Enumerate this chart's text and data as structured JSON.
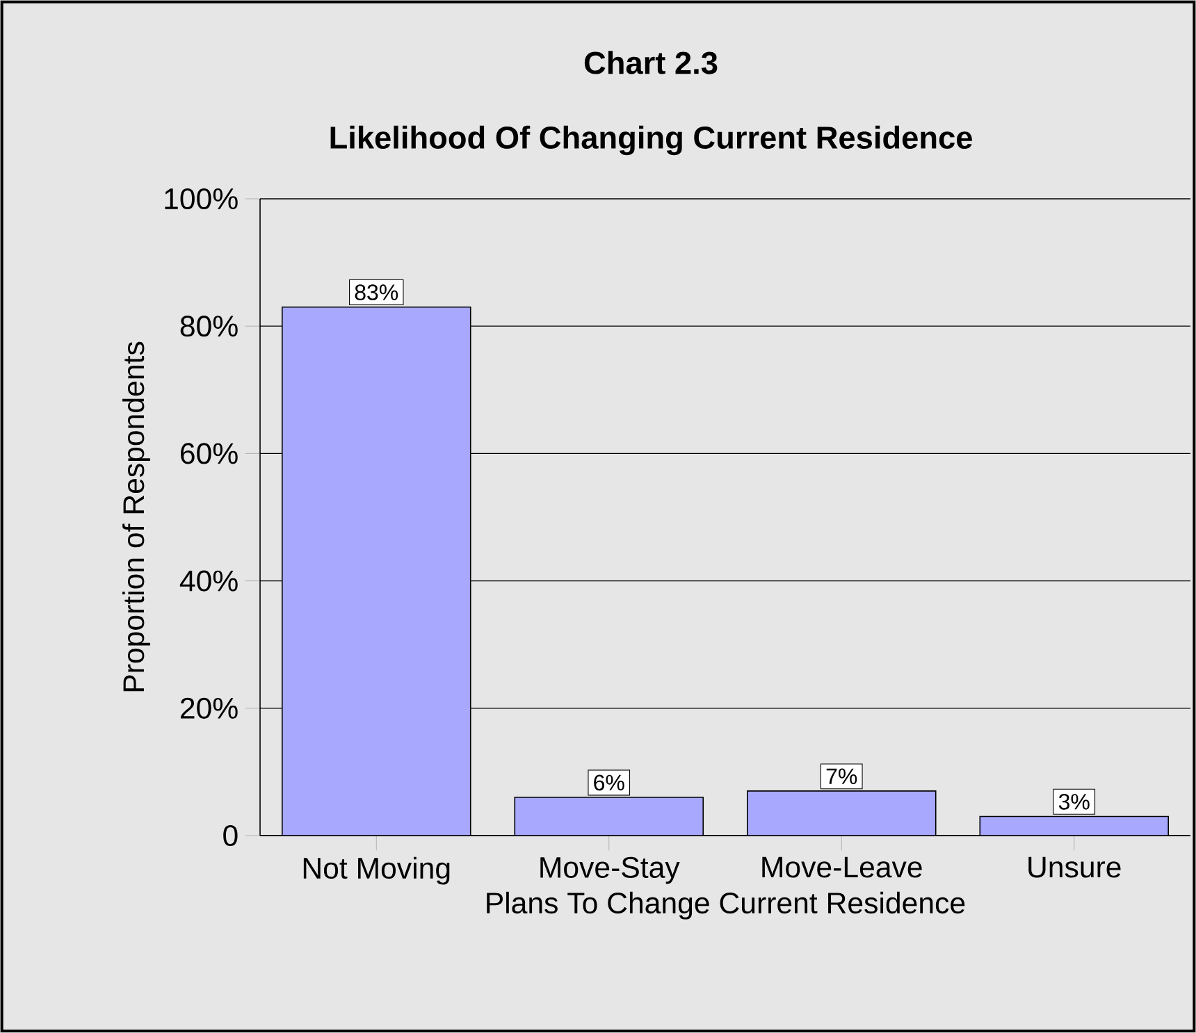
{
  "chart_data": {
    "type": "bar",
    "title": "Chart 2.3",
    "subtitle": "Likelihood Of Changing Current Residence",
    "xlabel": "Plans To Change Current Residence",
    "ylabel": "Proportion of Respondents",
    "categories": [
      "Not Moving",
      "Move-Stay",
      "Move-Leave",
      "Unsure"
    ],
    "values": [
      83,
      6,
      7,
      3
    ],
    "value_labels": [
      "83%",
      "6%",
      "7%",
      "3%"
    ],
    "color": "#a8a8ff",
    "ylim": [
      0,
      100
    ],
    "yticks": [
      0,
      {
        "value": 20,
        "label": "20%"
      },
      {
        "value": 40,
        "label": "40%"
      },
      {
        "value": 60,
        "label": "60%"
      },
      {
        "value": 80,
        "label": "80%"
      },
      {
        "value": 100,
        "label": "100%"
      }
    ],
    "grid": "y"
  }
}
